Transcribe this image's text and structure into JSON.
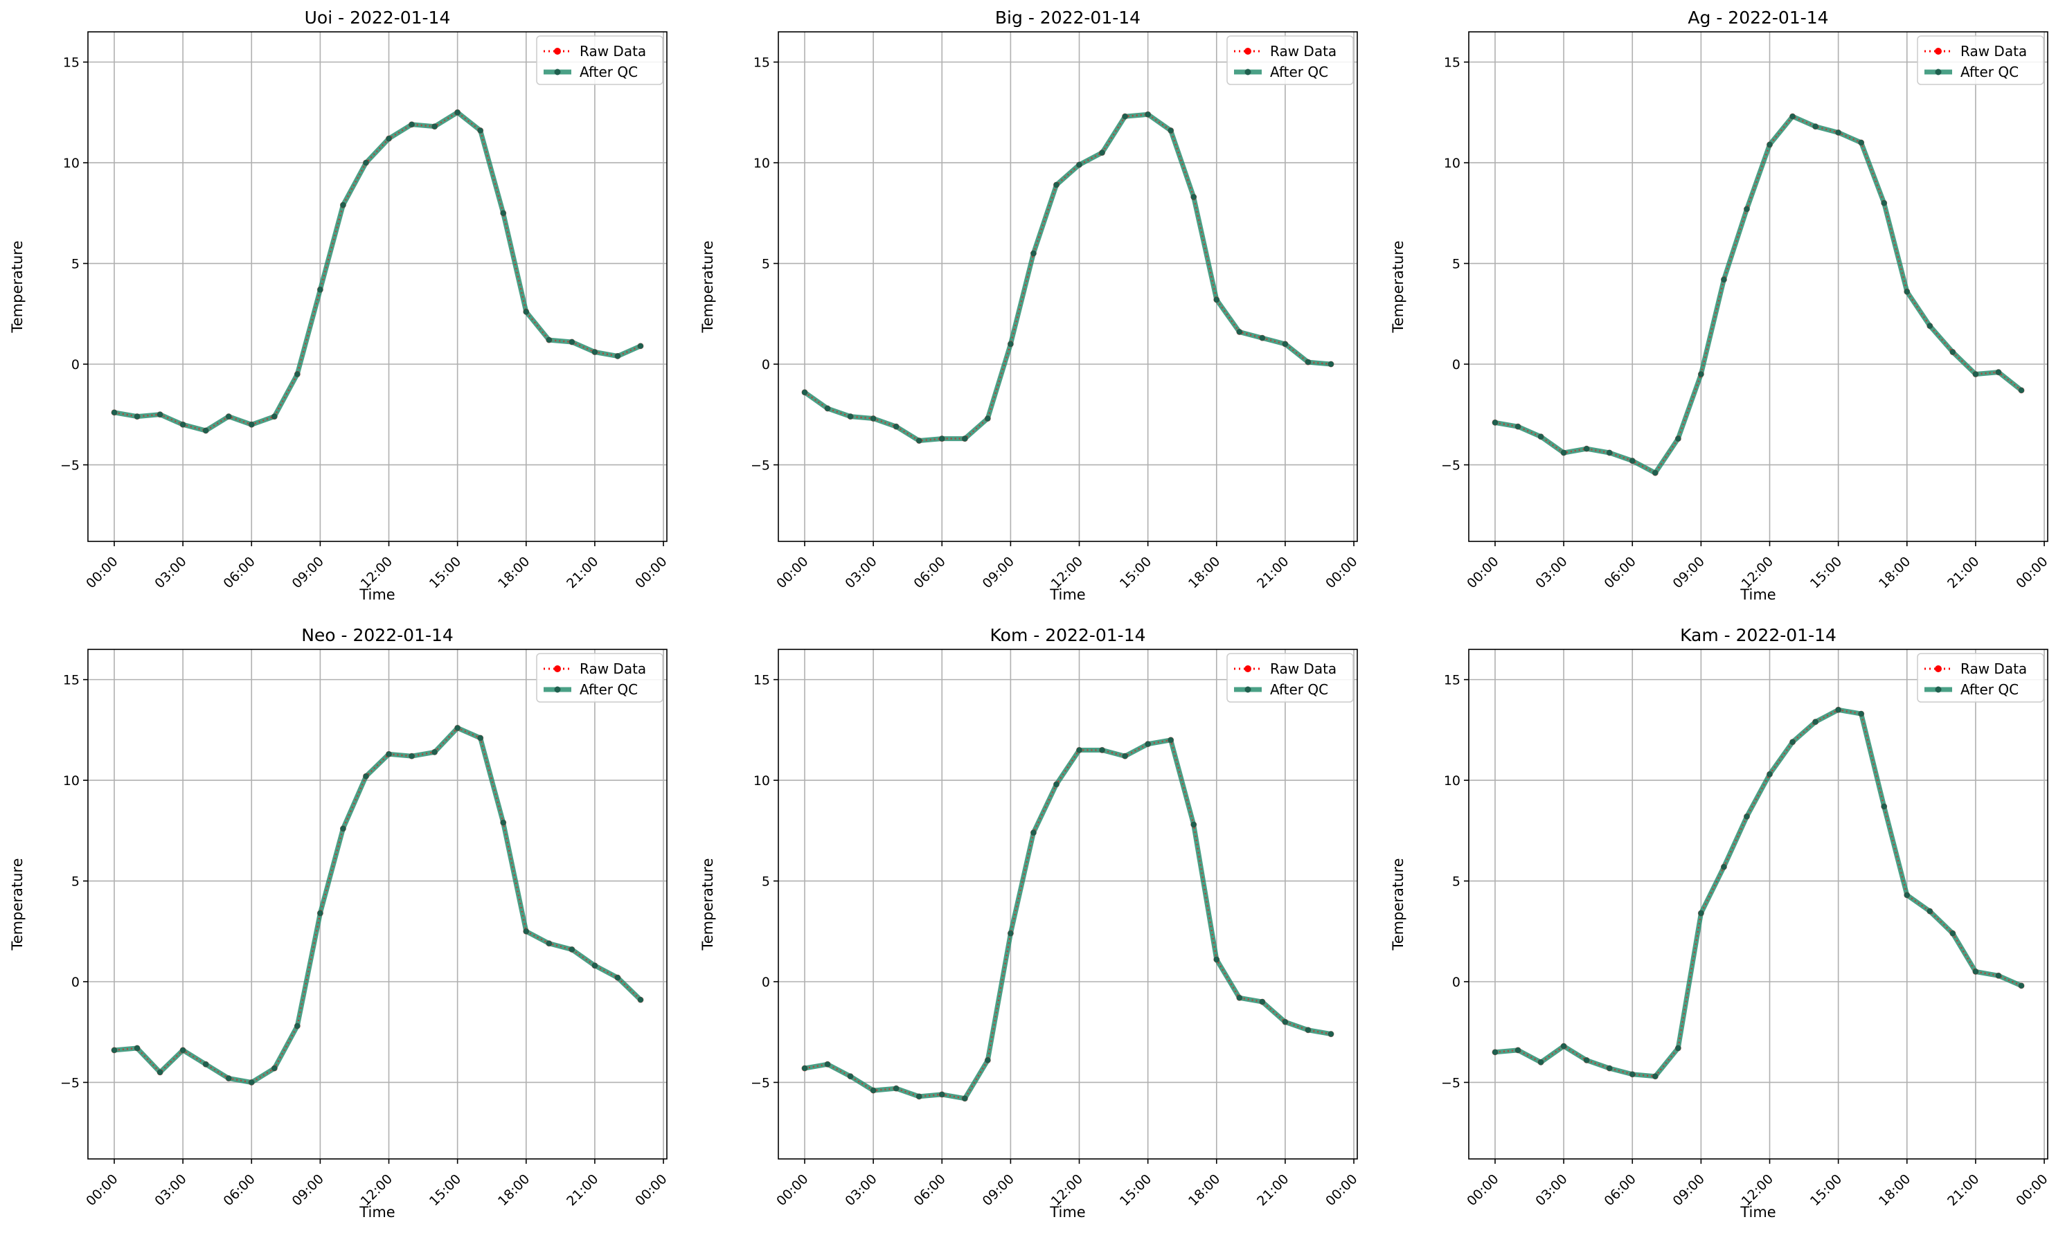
{
  "figure": {
    "legend_labels": {
      "raw": "Raw Data",
      "qc": "After QC"
    },
    "colors": {
      "raw": "#ff0000",
      "qc": "#228b6b",
      "marker": "#1f5f4e",
      "grid": "#b0b0b0",
      "frame": "#000000"
    }
  },
  "chart_data": [
    {
      "type": "line",
      "title": "Uoi - 2022-01-14",
      "xlabel": "Time",
      "ylabel": "Temperature",
      "xlim": [
        -1.15,
        24.15
      ],
      "ylim": [
        -8.8,
        16.5
      ],
      "xticks": [
        0,
        3,
        6,
        9,
        12,
        15,
        18,
        21,
        24
      ],
      "xtick_labels": [
        "00:00",
        "03:00",
        "06:00",
        "09:00",
        "12:00",
        "15:00",
        "18:00",
        "21:00",
        "00:00"
      ],
      "yticks": [
        -5,
        0,
        5,
        10,
        15
      ],
      "ytick_labels": [
        "−5",
        "0",
        "5",
        "10",
        "15"
      ],
      "grid": true,
      "legend": "upper right",
      "x": [
        0,
        1,
        2,
        3,
        4,
        5,
        6,
        7,
        8,
        9,
        10,
        11,
        12,
        13,
        14,
        15,
        16,
        17,
        18,
        19,
        20,
        21,
        22,
        23
      ],
      "series": [
        {
          "name": "Raw Data",
          "values": [
            -2.4,
            -2.6,
            -2.5,
            -3.0,
            -3.3,
            -2.6,
            -3.0,
            -2.6,
            -0.5,
            3.7,
            7.9,
            10.0,
            11.2,
            11.9,
            11.8,
            12.5,
            11.6,
            7.5,
            2.6,
            1.2,
            1.1,
            0.6,
            0.4,
            0.9
          ]
        },
        {
          "name": "After QC",
          "values": [
            -2.4,
            -2.6,
            -2.5,
            -3.0,
            -3.3,
            -2.6,
            -3.0,
            -2.6,
            -0.5,
            3.7,
            7.9,
            10.0,
            11.2,
            11.9,
            11.8,
            12.5,
            11.6,
            7.5,
            2.6,
            1.2,
            1.1,
            0.6,
            0.4,
            0.9
          ]
        }
      ]
    },
    {
      "type": "line",
      "title": "Big - 2022-01-14",
      "xlabel": "Time",
      "ylabel": "Temperature",
      "xlim": [
        -1.15,
        24.15
      ],
      "ylim": [
        -8.8,
        16.5
      ],
      "xticks": [
        0,
        3,
        6,
        9,
        12,
        15,
        18,
        21,
        24
      ],
      "xtick_labels": [
        "00:00",
        "03:00",
        "06:00",
        "09:00",
        "12:00",
        "15:00",
        "18:00",
        "21:00",
        "00:00"
      ],
      "yticks": [
        -5,
        0,
        5,
        10,
        15
      ],
      "ytick_labels": [
        "−5",
        "0",
        "5",
        "10",
        "15"
      ],
      "grid": true,
      "legend": "upper right",
      "x": [
        0,
        1,
        2,
        3,
        4,
        5,
        6,
        7,
        8,
        9,
        10,
        11,
        12,
        13,
        14,
        15,
        16,
        17,
        18,
        19,
        20,
        21,
        22,
        23
      ],
      "series": [
        {
          "name": "Raw Data",
          "values": [
            -1.4,
            -2.2,
            -2.6,
            -2.7,
            -3.1,
            -3.8,
            -3.7,
            -3.7,
            -2.7,
            1.0,
            5.5,
            8.9,
            9.9,
            10.5,
            12.3,
            12.4,
            11.6,
            8.3,
            3.2,
            1.6,
            1.3,
            1.0,
            0.1,
            0.0
          ]
        },
        {
          "name": "After QC",
          "values": [
            -1.4,
            -2.2,
            -2.6,
            -2.7,
            -3.1,
            -3.8,
            -3.7,
            -3.7,
            -2.7,
            1.0,
            5.5,
            8.9,
            9.9,
            10.5,
            12.3,
            12.4,
            11.6,
            8.3,
            3.2,
            1.6,
            1.3,
            1.0,
            0.1,
            0.0
          ]
        }
      ]
    },
    {
      "type": "line",
      "title": "Ag - 2022-01-14",
      "xlabel": "Time",
      "ylabel": "Temperature",
      "xlim": [
        -1.15,
        24.15
      ],
      "ylim": [
        -8.8,
        16.5
      ],
      "xticks": [
        0,
        3,
        6,
        9,
        12,
        15,
        18,
        21,
        24
      ],
      "xtick_labels": [
        "00:00",
        "03:00",
        "06:00",
        "09:00",
        "12:00",
        "15:00",
        "18:00",
        "21:00",
        "00:00"
      ],
      "yticks": [
        -5,
        0,
        5,
        10,
        15
      ],
      "ytick_labels": [
        "−5",
        "0",
        "5",
        "10",
        "15"
      ],
      "grid": true,
      "legend": "upper right",
      "x": [
        0,
        1,
        2,
        3,
        4,
        5,
        6,
        7,
        8,
        9,
        10,
        11,
        12,
        13,
        14,
        15,
        16,
        17,
        18,
        19,
        20,
        21,
        22,
        23
      ],
      "series": [
        {
          "name": "Raw Data",
          "values": [
            -2.9,
            -3.1,
            -3.6,
            -4.4,
            -4.2,
            -4.4,
            -4.8,
            -5.4,
            -3.7,
            -0.5,
            4.2,
            7.7,
            10.9,
            12.3,
            11.8,
            11.5,
            11.0,
            8.0,
            3.6,
            1.9,
            0.6,
            -0.5,
            -0.4,
            -1.3
          ]
        },
        {
          "name": "After QC",
          "values": [
            -2.9,
            -3.1,
            -3.6,
            -4.4,
            -4.2,
            -4.4,
            -4.8,
            -5.4,
            -3.7,
            -0.5,
            4.2,
            7.7,
            10.9,
            12.3,
            11.8,
            11.5,
            11.0,
            8.0,
            3.6,
            1.9,
            0.6,
            -0.5,
            -0.4,
            -1.3
          ]
        }
      ]
    },
    {
      "type": "line",
      "title": "Neo - 2022-01-14",
      "xlabel": "Time",
      "ylabel": "Temperature",
      "xlim": [
        -1.15,
        24.15
      ],
      "ylim": [
        -8.8,
        16.5
      ],
      "xticks": [
        0,
        3,
        6,
        9,
        12,
        15,
        18,
        21,
        24
      ],
      "xtick_labels": [
        "00:00",
        "03:00",
        "06:00",
        "09:00",
        "12:00",
        "15:00",
        "18:00",
        "21:00",
        "00:00"
      ],
      "yticks": [
        -5,
        0,
        5,
        10,
        15
      ],
      "ytick_labels": [
        "−5",
        "0",
        "5",
        "10",
        "15"
      ],
      "grid": true,
      "legend": "upper right",
      "x": [
        0,
        1,
        2,
        3,
        4,
        5,
        6,
        7,
        8,
        9,
        10,
        11,
        12,
        13,
        14,
        15,
        16,
        17,
        18,
        19,
        20,
        21,
        22,
        23
      ],
      "series": [
        {
          "name": "Raw Data",
          "values": [
            -3.4,
            -3.3,
            -4.5,
            -3.4,
            -4.1,
            -4.8,
            -5.0,
            -4.3,
            -2.2,
            3.4,
            7.6,
            10.2,
            11.3,
            11.2,
            11.4,
            12.6,
            12.1,
            7.9,
            2.5,
            1.9,
            1.6,
            0.8,
            0.2,
            -0.9
          ]
        },
        {
          "name": "After QC",
          "values": [
            -3.4,
            -3.3,
            -4.5,
            -3.4,
            -4.1,
            -4.8,
            -5.0,
            -4.3,
            -2.2,
            3.4,
            7.6,
            10.2,
            11.3,
            11.2,
            11.4,
            12.6,
            12.1,
            7.9,
            2.5,
            1.9,
            1.6,
            0.8,
            0.2,
            -0.9
          ]
        }
      ]
    },
    {
      "type": "line",
      "title": "Kom - 2022-01-14",
      "xlabel": "Time",
      "ylabel": "Temperature",
      "xlim": [
        -1.15,
        24.15
      ],
      "ylim": [
        -8.8,
        16.5
      ],
      "xticks": [
        0,
        3,
        6,
        9,
        12,
        15,
        18,
        21,
        24
      ],
      "xtick_labels": [
        "00:00",
        "03:00",
        "06:00",
        "09:00",
        "12:00",
        "15:00",
        "18:00",
        "21:00",
        "00:00"
      ],
      "yticks": [
        -5,
        0,
        5,
        10,
        15
      ],
      "ytick_labels": [
        "−5",
        "0",
        "5",
        "10",
        "15"
      ],
      "grid": true,
      "legend": "upper right",
      "x": [
        0,
        1,
        2,
        3,
        4,
        5,
        6,
        7,
        8,
        9,
        10,
        11,
        12,
        13,
        14,
        15,
        16,
        17,
        18,
        19,
        20,
        21,
        22,
        23
      ],
      "series": [
        {
          "name": "Raw Data",
          "values": [
            -4.3,
            -4.1,
            -4.7,
            -5.4,
            -5.3,
            -5.7,
            -5.6,
            -5.8,
            -3.9,
            2.4,
            7.4,
            9.8,
            11.5,
            11.5,
            11.2,
            11.8,
            12.0,
            7.8,
            1.1,
            -0.8,
            -1.0,
            -2.0,
            -2.4,
            -2.6
          ]
        },
        {
          "name": "After QC",
          "values": [
            -4.3,
            -4.1,
            -4.7,
            -5.4,
            -5.3,
            -5.7,
            -5.6,
            -5.8,
            -3.9,
            2.4,
            7.4,
            9.8,
            11.5,
            11.5,
            11.2,
            11.8,
            12.0,
            7.8,
            1.1,
            -0.8,
            -1.0,
            -2.0,
            -2.4,
            -2.6
          ]
        }
      ]
    },
    {
      "type": "line",
      "title": "Kam - 2022-01-14",
      "xlabel": "Time",
      "ylabel": "Temperature",
      "xlim": [
        -1.15,
        24.15
      ],
      "ylim": [
        -8.8,
        16.5
      ],
      "xticks": [
        0,
        3,
        6,
        9,
        12,
        15,
        18,
        21,
        24
      ],
      "xtick_labels": [
        "00:00",
        "03:00",
        "06:00",
        "09:00",
        "12:00",
        "15:00",
        "18:00",
        "21:00",
        "00:00"
      ],
      "yticks": [
        -5,
        0,
        5,
        10,
        15
      ],
      "ytick_labels": [
        "−5",
        "0",
        "5",
        "10",
        "15"
      ],
      "grid": true,
      "legend": "upper right",
      "x": [
        0,
        1,
        2,
        3,
        4,
        5,
        6,
        7,
        8,
        9,
        10,
        11,
        12,
        13,
        14,
        15,
        16,
        17,
        18,
        19,
        20,
        21,
        22,
        23
      ],
      "series": [
        {
          "name": "Raw Data",
          "values": [
            -3.5,
            -3.4,
            -4.0,
            -3.2,
            -3.9,
            -4.3,
            -4.6,
            -4.7,
            -3.3,
            3.4,
            5.7,
            8.2,
            10.3,
            11.9,
            12.9,
            13.5,
            13.3,
            8.7,
            4.3,
            3.5,
            2.4,
            0.5,
            0.3,
            -0.2
          ]
        },
        {
          "name": "After QC",
          "values": [
            -3.5,
            -3.4,
            -4.0,
            -3.2,
            -3.9,
            -4.3,
            -4.6,
            -4.7,
            -3.3,
            3.4,
            5.7,
            8.2,
            10.3,
            11.9,
            12.9,
            13.5,
            13.3,
            8.7,
            4.3,
            3.5,
            2.4,
            0.5,
            0.3,
            -0.2
          ]
        }
      ]
    }
  ]
}
